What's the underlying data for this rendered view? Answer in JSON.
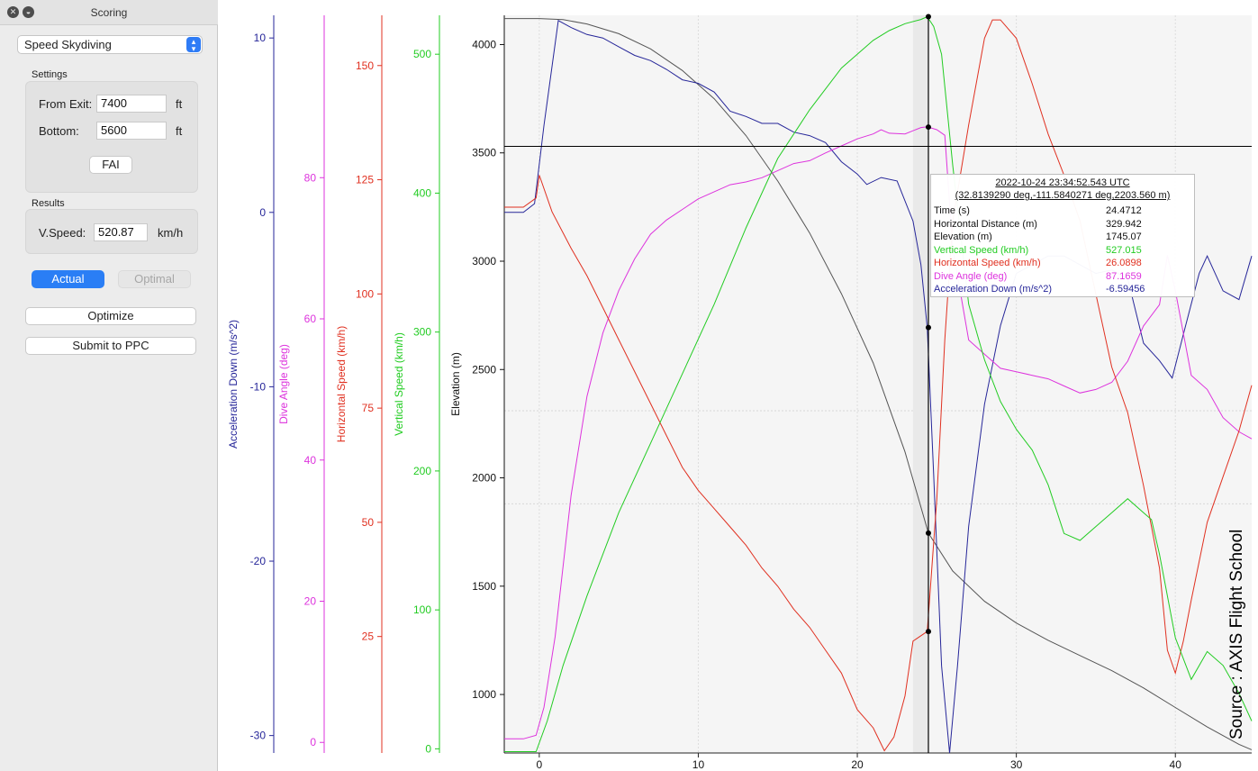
{
  "window": {
    "title": "Scoring"
  },
  "mode_select": {
    "value": "Speed Skydiving"
  },
  "settings": {
    "title": "Settings",
    "from_exit": {
      "label": "From Exit:",
      "value": "7400",
      "unit": "ft"
    },
    "bottom": {
      "label": "Bottom:",
      "value": "5600",
      "unit": "ft"
    },
    "fai_label": "FAI"
  },
  "results": {
    "title": "Results",
    "vspeed": {
      "label": "V.Speed:",
      "value": "520.87",
      "unit": "km/h"
    }
  },
  "buttons": {
    "actual": "Actual",
    "optimal": "Optimal",
    "optimize": "Optimize",
    "submit": "Submit to PPC"
  },
  "tooltip": {
    "header_time": "2022-10-24 23:34:52.543 UTC",
    "header_coords": "(32.8139290 deg,-111.5840271 deg,2203.560 m)",
    "rows": [
      {
        "name": "Time (s)",
        "value": "24.4712",
        "color": "#111111"
      },
      {
        "name": "Horizontal Distance (m)",
        "value": "329.942",
        "color": "#111111"
      },
      {
        "name": "Elevation (m)",
        "value": "1745.07",
        "color": "#111111"
      },
      {
        "name": "Vertical Speed (km/h)",
        "value": "527.015",
        "color": "#22cc22"
      },
      {
        "name": "Horizontal Speed (km/h)",
        "value": "26.0898",
        "color": "#e03020"
      },
      {
        "name": "Dive Angle (deg)",
        "value": "87.1659",
        "color": "#dd33dd"
      },
      {
        "name": "Acceleration Down (m/s^2)",
        "value": "-6.59456",
        "color": "#262699"
      }
    ]
  },
  "watermark": "Source : AXIS Flight School",
  "chart_data": {
    "type": "line",
    "x_range": [
      -2.2,
      44.8
    ],
    "x_ticks": [
      0,
      10,
      20,
      30,
      40
    ],
    "cursor_x": 24.47,
    "bottom_marker_elevation": 3530,
    "axes": [
      {
        "id": "accel",
        "label": "Acceleration Down (m/s^2)",
        "color": "#262699",
        "range": [
          -31,
          11.3
        ],
        "ticks": [
          10,
          0,
          -10,
          -20,
          -30
        ]
      },
      {
        "id": "dive",
        "label": "Dive Angle (deg)",
        "color": "#dd33dd",
        "range": [
          -1.5,
          103
        ],
        "ticks": [
          80,
          60,
          40,
          20,
          0
        ]
      },
      {
        "id": "hspeed",
        "label": "Horizontal Speed (km/h)",
        "color": "#e03020",
        "range": [
          -0.5,
          161
        ],
        "ticks": [
          150,
          125,
          100,
          75,
          50,
          25
        ]
      },
      {
        "id": "vspeed",
        "label": "Vertical Speed (km/h)",
        "color": "#22cc22",
        "range": [
          -3,
          528
        ],
        "ticks": [
          500,
          400,
          300,
          200,
          100,
          0
        ]
      },
      {
        "id": "elev",
        "label": "Elevation (m)",
        "color": "#111111",
        "range": [
          730,
          4135
        ],
        "ticks": [
          4000,
          3500,
          3000,
          2500,
          2000,
          1500,
          1000
        ]
      }
    ],
    "series": [
      {
        "axis": "elev",
        "color": "#555555",
        "x": [
          -2.2,
          0,
          1.5,
          3,
          5,
          7,
          9,
          11,
          13,
          15,
          17,
          19,
          21,
          23,
          24.47,
          26,
          28,
          30,
          32,
          34,
          36,
          38,
          40,
          42,
          44,
          44.8
        ],
        "y": [
          4120,
          4120,
          4115,
          4095,
          4050,
          3980,
          3880,
          3750,
          3580,
          3370,
          3130,
          2850,
          2530,
          2120,
          1745,
          1570,
          1430,
          1330,
          1250,
          1180,
          1110,
          1030,
          940,
          850,
          770,
          745
        ]
      },
      {
        "axis": "accel",
        "color": "#262699",
        "x": [
          -2.2,
          -1,
          -0.3,
          0.3,
          1.2,
          2,
          3,
          4,
          5,
          6,
          7,
          8,
          9,
          10,
          11,
          12,
          13,
          14,
          15,
          16,
          17,
          18,
          19,
          20,
          20.6,
          21.5,
          22.5,
          23.5,
          24,
          24.4,
          24.8,
          25.3,
          25.8,
          26.3,
          27,
          28,
          29,
          30,
          31,
          32,
          33,
          34,
          35,
          36,
          37,
          38,
          39,
          39.8,
          40.5,
          41.5,
          42,
          43,
          44,
          44.8
        ],
        "y": [
          0,
          0,
          0.5,
          5,
          11,
          10.6,
          10.2,
          10,
          9.5,
          9,
          8.7,
          8.2,
          7.6,
          7.4,
          6.9,
          5.8,
          5.5,
          5.1,
          5.1,
          4.6,
          4.4,
          4.0,
          2.9,
          2.2,
          1.6,
          2.0,
          1.8,
          -0.5,
          -3,
          -6.6,
          -15,
          -26,
          -31,
          -26,
          -18,
          -11,
          -6.5,
          -3.5,
          -3,
          -2.5,
          -2.5,
          -3,
          -3.5,
          -3.3,
          -3.8,
          -7.5,
          -8.5,
          -9.5,
          -7,
          -3.5,
          -2.5,
          -4.5,
          -5,
          -2.5
        ]
      },
      {
        "axis": "dive",
        "color": "#dd33dd",
        "x": [
          -2.2,
          -1,
          -0.2,
          0.3,
          1,
          2,
          3,
          4,
          5,
          6,
          7,
          8,
          9,
          10,
          11,
          12,
          13,
          14,
          15,
          16,
          17,
          18,
          19,
          20,
          21,
          21.5,
          22,
          23,
          24,
          24.4,
          25,
          25.5,
          26,
          27,
          28,
          29,
          30,
          31,
          32,
          33,
          34,
          35,
          36,
          37,
          38,
          39,
          39.5,
          40,
          41,
          42,
          43,
          44,
          44.8
        ],
        "y": [
          0.5,
          0.5,
          1,
          5,
          15,
          35,
          49,
          58,
          64,
          68.5,
          72,
          74,
          75.5,
          77,
          78,
          79,
          79.4,
          80,
          81,
          82,
          82.4,
          83.5,
          84.5,
          85.5,
          86.2,
          86.8,
          86.3,
          86.2,
          87.1,
          87.2,
          86.8,
          86,
          70,
          57,
          55,
          53,
          52.5,
          52,
          51.5,
          50.5,
          49.5,
          50,
          51,
          54,
          59,
          62,
          69,
          64,
          52,
          50,
          46,
          44,
          43
        ]
      },
      {
        "axis": "hspeed",
        "color": "#e03020",
        "x": [
          -2.2,
          -1,
          -0.2,
          0,
          0.8,
          2,
          3,
          4,
          5,
          6,
          7,
          8,
          9,
          10,
          11,
          12,
          13,
          14,
          15,
          16,
          17,
          18,
          19,
          20,
          21,
          21.7,
          22.3,
          23,
          23.5,
          24.4,
          25,
          25.5,
          26,
          27,
          28,
          28.5,
          29,
          30,
          31,
          32,
          33,
          34,
          35,
          36,
          37,
          38,
          39,
          39.5,
          40,
          40.5,
          41,
          42,
          43,
          44,
          44.8
        ],
        "y": [
          119,
          119,
          121,
          126,
          118,
          110,
          104,
          97,
          90,
          83,
          76,
          69,
          62,
          57,
          53,
          49,
          45,
          40,
          36,
          31,
          27,
          22,
          17,
          9,
          5,
          0,
          3,
          12,
          24,
          26.1,
          55,
          90,
          116,
          137,
          156,
          160,
          160,
          156,
          146,
          135,
          126,
          116,
          100,
          84,
          74,
          58,
          40,
          22,
          17,
          24,
          33,
          50,
          60,
          70,
          80
        ]
      },
      {
        "axis": "vspeed",
        "color": "#22cc22",
        "x": [
          -2.2,
          -0.2,
          0.5,
          1.5,
          3,
          5,
          7,
          9,
          11,
          13,
          15,
          17,
          19,
          21,
          22,
          23,
          24,
          24.4,
          24.8,
          25.3,
          26,
          27,
          28,
          29,
          30,
          31,
          32,
          33,
          34,
          35,
          36,
          37,
          38,
          38.5,
          39,
          40,
          41,
          42,
          43,
          44,
          44.8
        ],
        "y": [
          -2,
          -2,
          20,
          60,
          110,
          170,
          220,
          270,
          320,
          375,
          425,
          460,
          490,
          510,
          517,
          522,
          525,
          527,
          520,
          500,
          420,
          320,
          280,
          250,
          230,
          215,
          190,
          155,
          150,
          160,
          170,
          180,
          170,
          165,
          140,
          80,
          50,
          70,
          60,
          40,
          20
        ]
      }
    ],
    "cursor_points": [
      {
        "series": "vspeed",
        "value": 527
      },
      {
        "series": "dive",
        "value": 87.17
      },
      {
        "series": "accel",
        "value": -6.6
      },
      {
        "series": "elev",
        "value": 1745
      },
      {
        "series": "hspeed",
        "value": 26.09
      }
    ]
  }
}
